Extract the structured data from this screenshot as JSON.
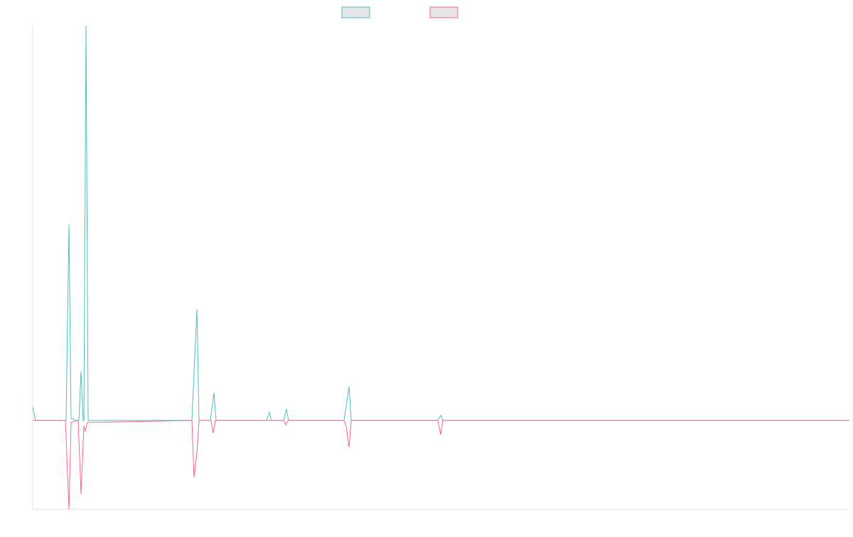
{
  "chart_data": {
    "type": "line",
    "series": [
      {
        "color": "#4bc0c0",
        "x": [
          0,
          4,
          47,
          51,
          54,
          57,
          60,
          65,
          68,
          71,
          72,
          75,
          78,
          224,
          231,
          234,
          250,
          255,
          258,
          329,
          333,
          336,
          353,
          357,
          360,
          438,
          445,
          448,
          570,
          574,
          577,
          1149
        ],
        "values": [
          3.4,
          0,
          0,
          49.7,
          0.4,
          0.4,
          0,
          0,
          12.4,
          0,
          0,
          100,
          0,
          0,
          28.1,
          0,
          0,
          7.0,
          0,
          0,
          2.0,
          0,
          0,
          2.9,
          0,
          0,
          8.6,
          0,
          0,
          1.3,
          0,
          0
        ]
      },
      {
        "color": "#ff6384",
        "x": [
          0,
          46,
          51,
          54,
          58,
          64,
          68,
          72,
          74,
          77,
          224,
          227,
          231,
          234,
          251,
          254,
          257,
          353,
          356,
          359,
          438,
          441,
          445,
          448,
          570,
          574,
          577,
          1149
        ],
        "values": [
          0,
          0,
          -22.5,
          -0.5,
          -0.2,
          0,
          -18.7,
          -1.4,
          -2.7,
          -0.5,
          0,
          -14.4,
          -8.1,
          0,
          0,
          -3.2,
          0,
          0,
          -1.1,
          0,
          0,
          -1.4,
          -6.8,
          0,
          0,
          -3.6,
          0,
          0
        ]
      }
    ],
    "xlim": [
      0,
      1149
    ],
    "ylim": [
      -22.5,
      100
    ]
  }
}
